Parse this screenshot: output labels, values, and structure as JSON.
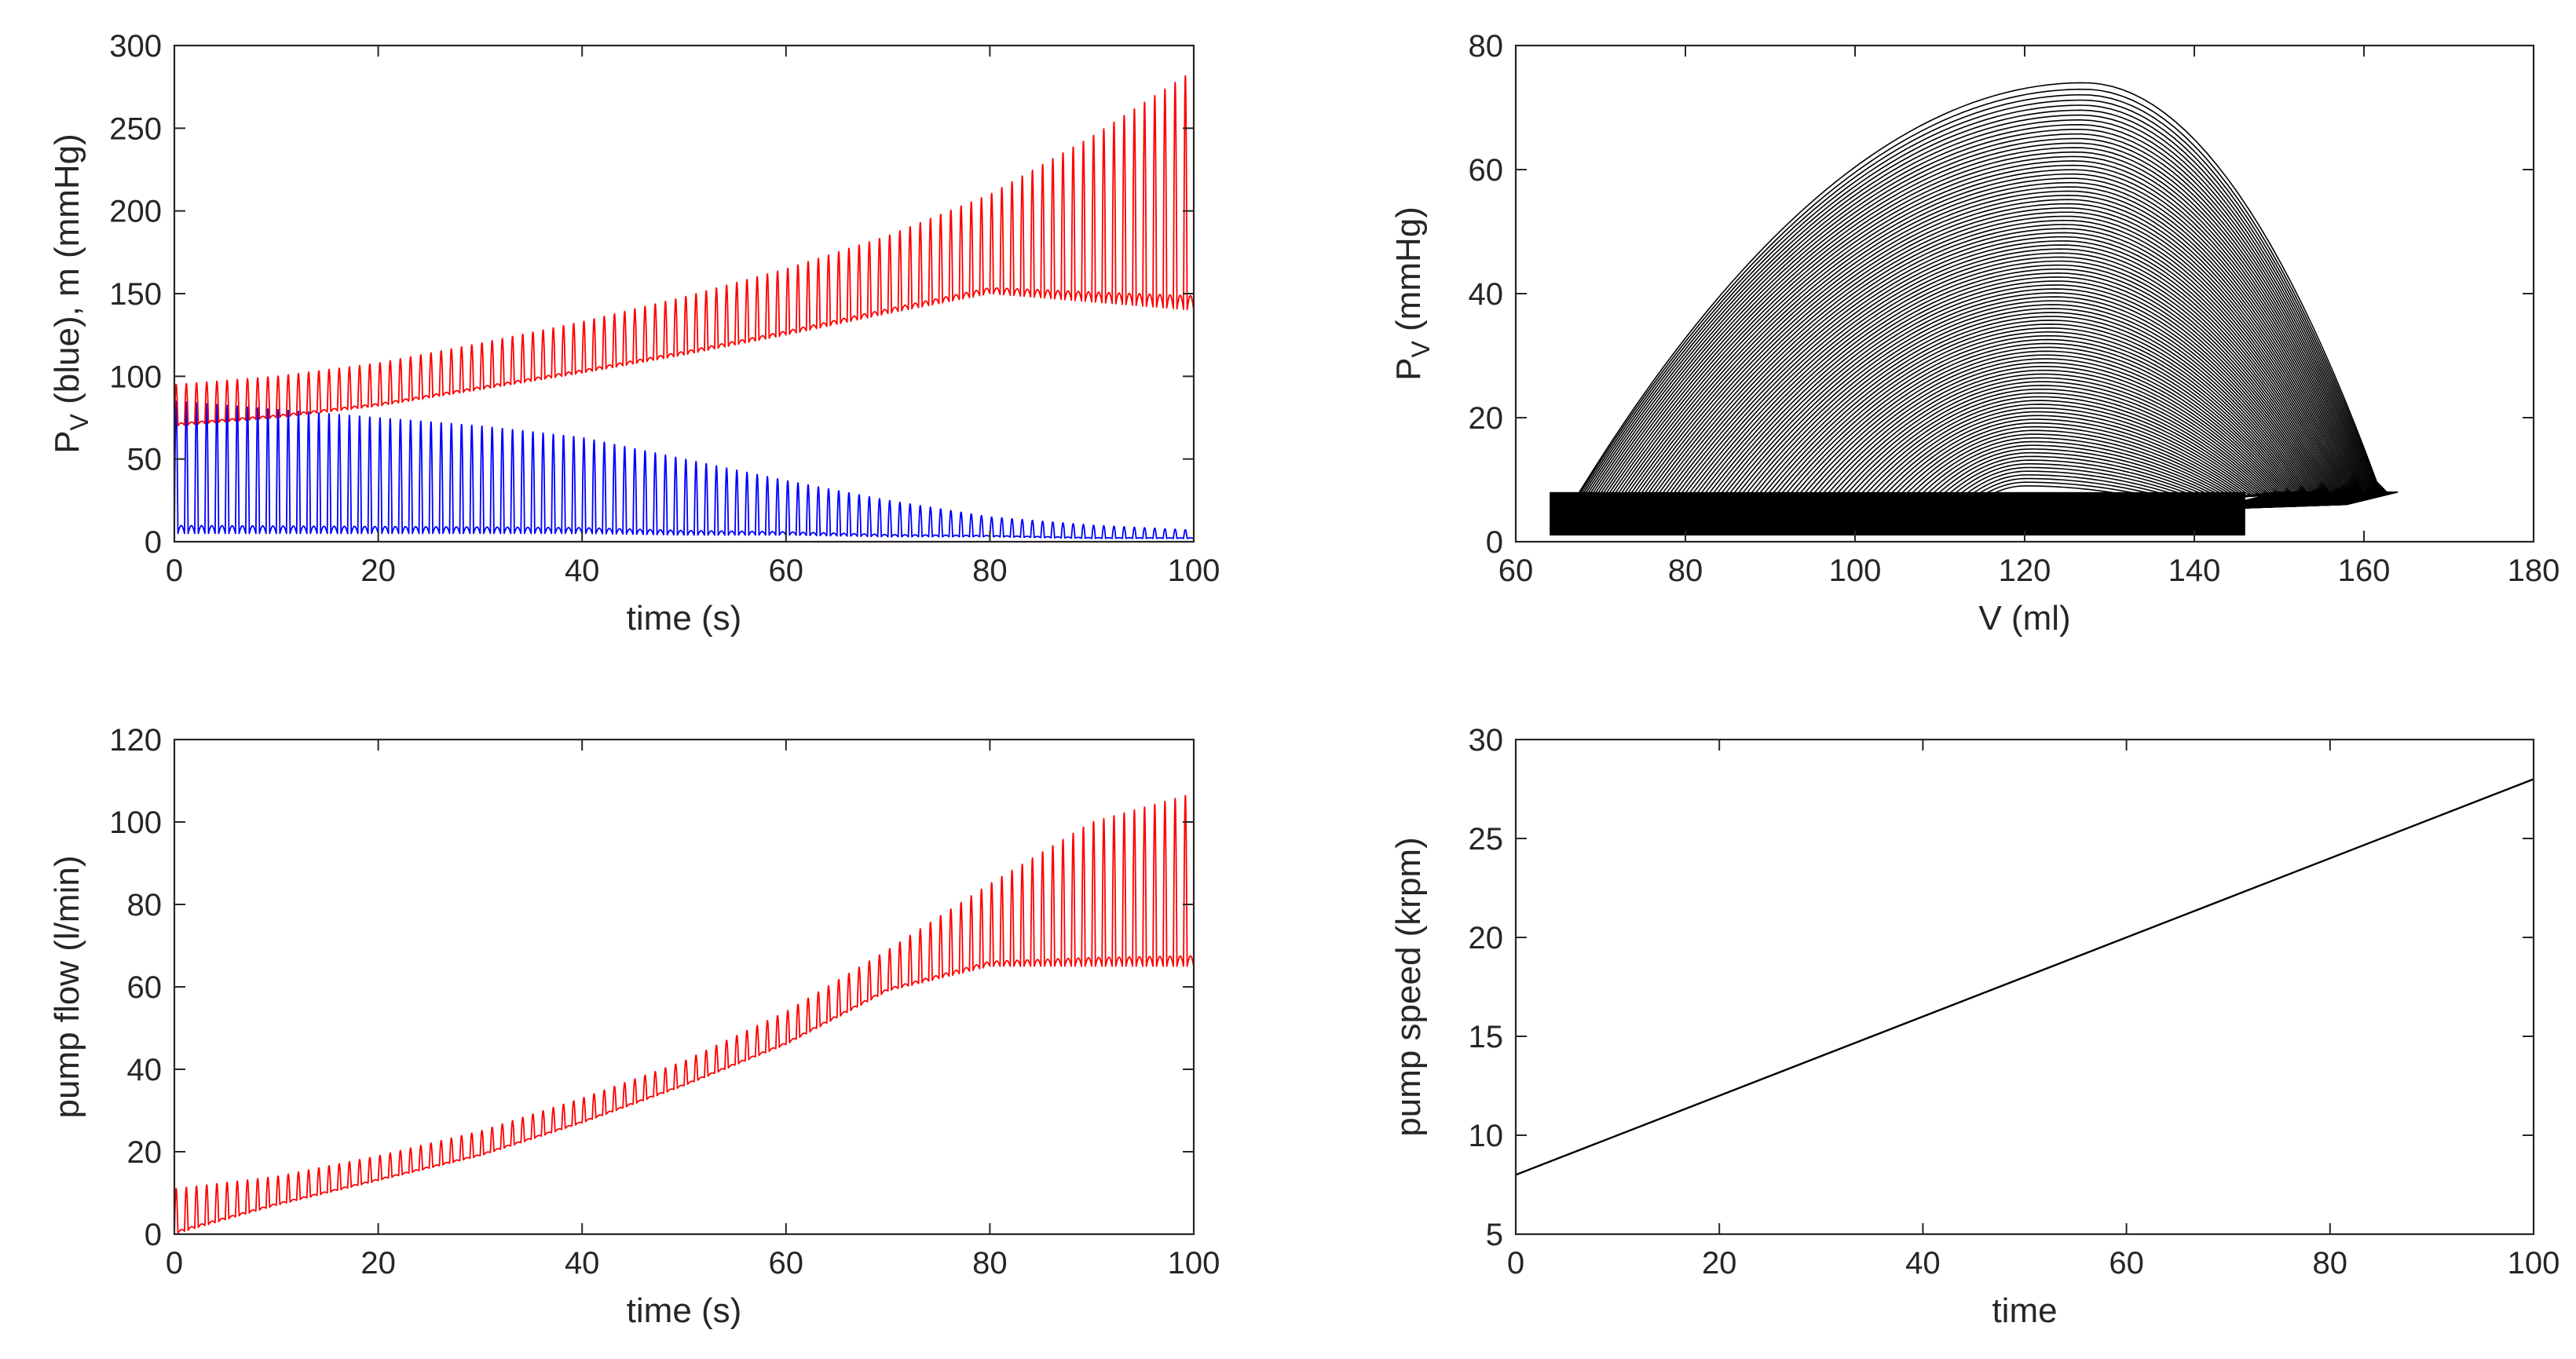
{
  "chart_data": [
    {
      "id": "p1",
      "type": "line",
      "title": "",
      "xlabel": "time (s)",
      "ylabel": "P_V (blue), m (mmHg)",
      "ylabel_parts": {
        "pre": "P",
        "sub": "V",
        "post": " (blue), m (mmHg)"
      },
      "xlim": [
        0,
        100
      ],
      "ylim": [
        0,
        300
      ],
      "xticks": [
        0,
        20,
        40,
        60,
        80,
        100
      ],
      "yticks": [
        0,
        50,
        100,
        150,
        200,
        250,
        300
      ],
      "grid": false,
      "series": [
        {
          "name": "P_V",
          "color": "#0000ff",
          "pattern": "pulsatile",
          "envelope_time": [
            0,
            10,
            20,
            30,
            40,
            50,
            60,
            70,
            80,
            90,
            100
          ],
          "envelope_max": [
            85,
            80,
            75,
            70,
            63,
            50,
            37,
            25,
            15,
            10,
            7
          ],
          "envelope_min": [
            5,
            5,
            5,
            5,
            5,
            4,
            4,
            3,
            3,
            2,
            2
          ],
          "beats_per_second": 1
        },
        {
          "name": "m",
          "color": "#ff0000",
          "pattern": "pulsatile",
          "envelope_time": [
            0,
            10,
            20,
            30,
            40,
            50,
            60,
            70,
            80,
            90,
            100
          ],
          "envelope_max": [
            95,
            100,
            108,
            120,
            133,
            148,
            165,
            185,
            210,
            245,
            285
          ],
          "envelope_min": [
            70,
            75,
            82,
            92,
            102,
            113,
            125,
            138,
            150,
            145,
            140
          ],
          "beats_per_second": 1
        }
      ]
    },
    {
      "id": "p2",
      "type": "line",
      "title": "",
      "xlabel": "V (ml)",
      "ylabel": "P_V (mmHg)",
      "ylabel_parts": {
        "pre": "P",
        "sub": "V",
        "post": " (mmHg)"
      },
      "xlim": [
        60,
        180
      ],
      "ylim": [
        0,
        80
      ],
      "xticks": [
        60,
        80,
        100,
        120,
        140,
        160,
        180
      ],
      "yticks": [
        0,
        20,
        40,
        60,
        80
      ],
      "grid": false,
      "series": [
        {
          "name": "PV loops",
          "color": "#000000",
          "pattern": "pv-loops",
          "loop_count": 100,
          "peak_loop": {
            "ves": 64,
            "ved": 164,
            "peak_v": 127,
            "peak_p": 74
          },
          "last_loop": {
            "ves": 110,
            "ved": 150,
            "peak_v": 120,
            "peak_p": 9
          },
          "ped": 8,
          "pes": 2
        }
      ]
    },
    {
      "id": "p3",
      "type": "line",
      "title": "",
      "xlabel": "time (s)",
      "ylabel": "pump flow (l/min)",
      "xlim": [
        0,
        100
      ],
      "ylim": [
        0,
        120
      ],
      "xticks": [
        0,
        20,
        40,
        60,
        80,
        100
      ],
      "yticks": [
        0,
        20,
        40,
        60,
        80,
        100,
        120
      ],
      "grid": false,
      "series": [
        {
          "name": "pump flow",
          "color": "#ff0000",
          "pattern": "pulsatile",
          "envelope_time": [
            0,
            10,
            20,
            30,
            40,
            50,
            60,
            70,
            80,
            90,
            100
          ],
          "envelope_max": [
            11,
            14,
            19,
            25,
            33,
            42,
            54,
            69,
            85,
            100,
            107
          ],
          "envelope_min": [
            0,
            7,
            13,
            19,
            27,
            36,
            46,
            59,
            65,
            65,
            65
          ],
          "beats_per_second": 1
        }
      ]
    },
    {
      "id": "p4",
      "type": "line",
      "title": "",
      "xlabel": "time",
      "ylabel": "pump speed (krpm)",
      "xlim": [
        0,
        100
      ],
      "ylim": [
        5,
        30
      ],
      "xticks": [
        0,
        20,
        40,
        60,
        80,
        100
      ],
      "yticks": [
        5,
        10,
        15,
        20,
        25,
        30
      ],
      "grid": false,
      "series": [
        {
          "name": "pump speed",
          "color": "#000000",
          "pattern": "linear",
          "x": [
            0,
            100
          ],
          "y": [
            8,
            28
          ]
        }
      ]
    }
  ]
}
